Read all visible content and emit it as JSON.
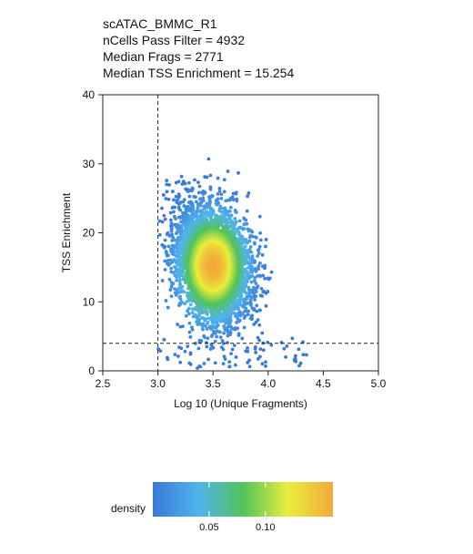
{
  "chart_data": {
    "type": "scatter",
    "title_lines": [
      "scATAC_BMMC_R1",
      "nCells Pass Filter = 4932",
      "Median Frags = 2771",
      "Median TSS Enrichment = 15.254"
    ],
    "xlabel": "Log 10 (Unique Fragments)",
    "ylabel": "TSS Enrichment",
    "xlim": [
      2.5,
      5.0
    ],
    "ylim": [
      0,
      40
    ],
    "x_ticks": [
      "2.5",
      "3.0",
      "3.5",
      "4.0",
      "4.5",
      "5.0"
    ],
    "y_ticks": [
      "0",
      "10",
      "20",
      "30",
      "40"
    ],
    "threshold_lines": {
      "x": 3.0,
      "y": 4
    },
    "density_center": {
      "x": 3.5,
      "y": 15.2
    },
    "n_points": 4932,
    "grid": false,
    "legend": {
      "title": "density",
      "tick_labels": [
        "0.05",
        "0.10"
      ],
      "tick_values": [
        0.05,
        0.1
      ],
      "range": [
        0.0,
        0.16
      ],
      "placement": "bottom",
      "colors": [
        "#3a78d6",
        "#4fb3ec",
        "#52c35a",
        "#e9ee3c",
        "#f2a93a"
      ]
    }
  }
}
